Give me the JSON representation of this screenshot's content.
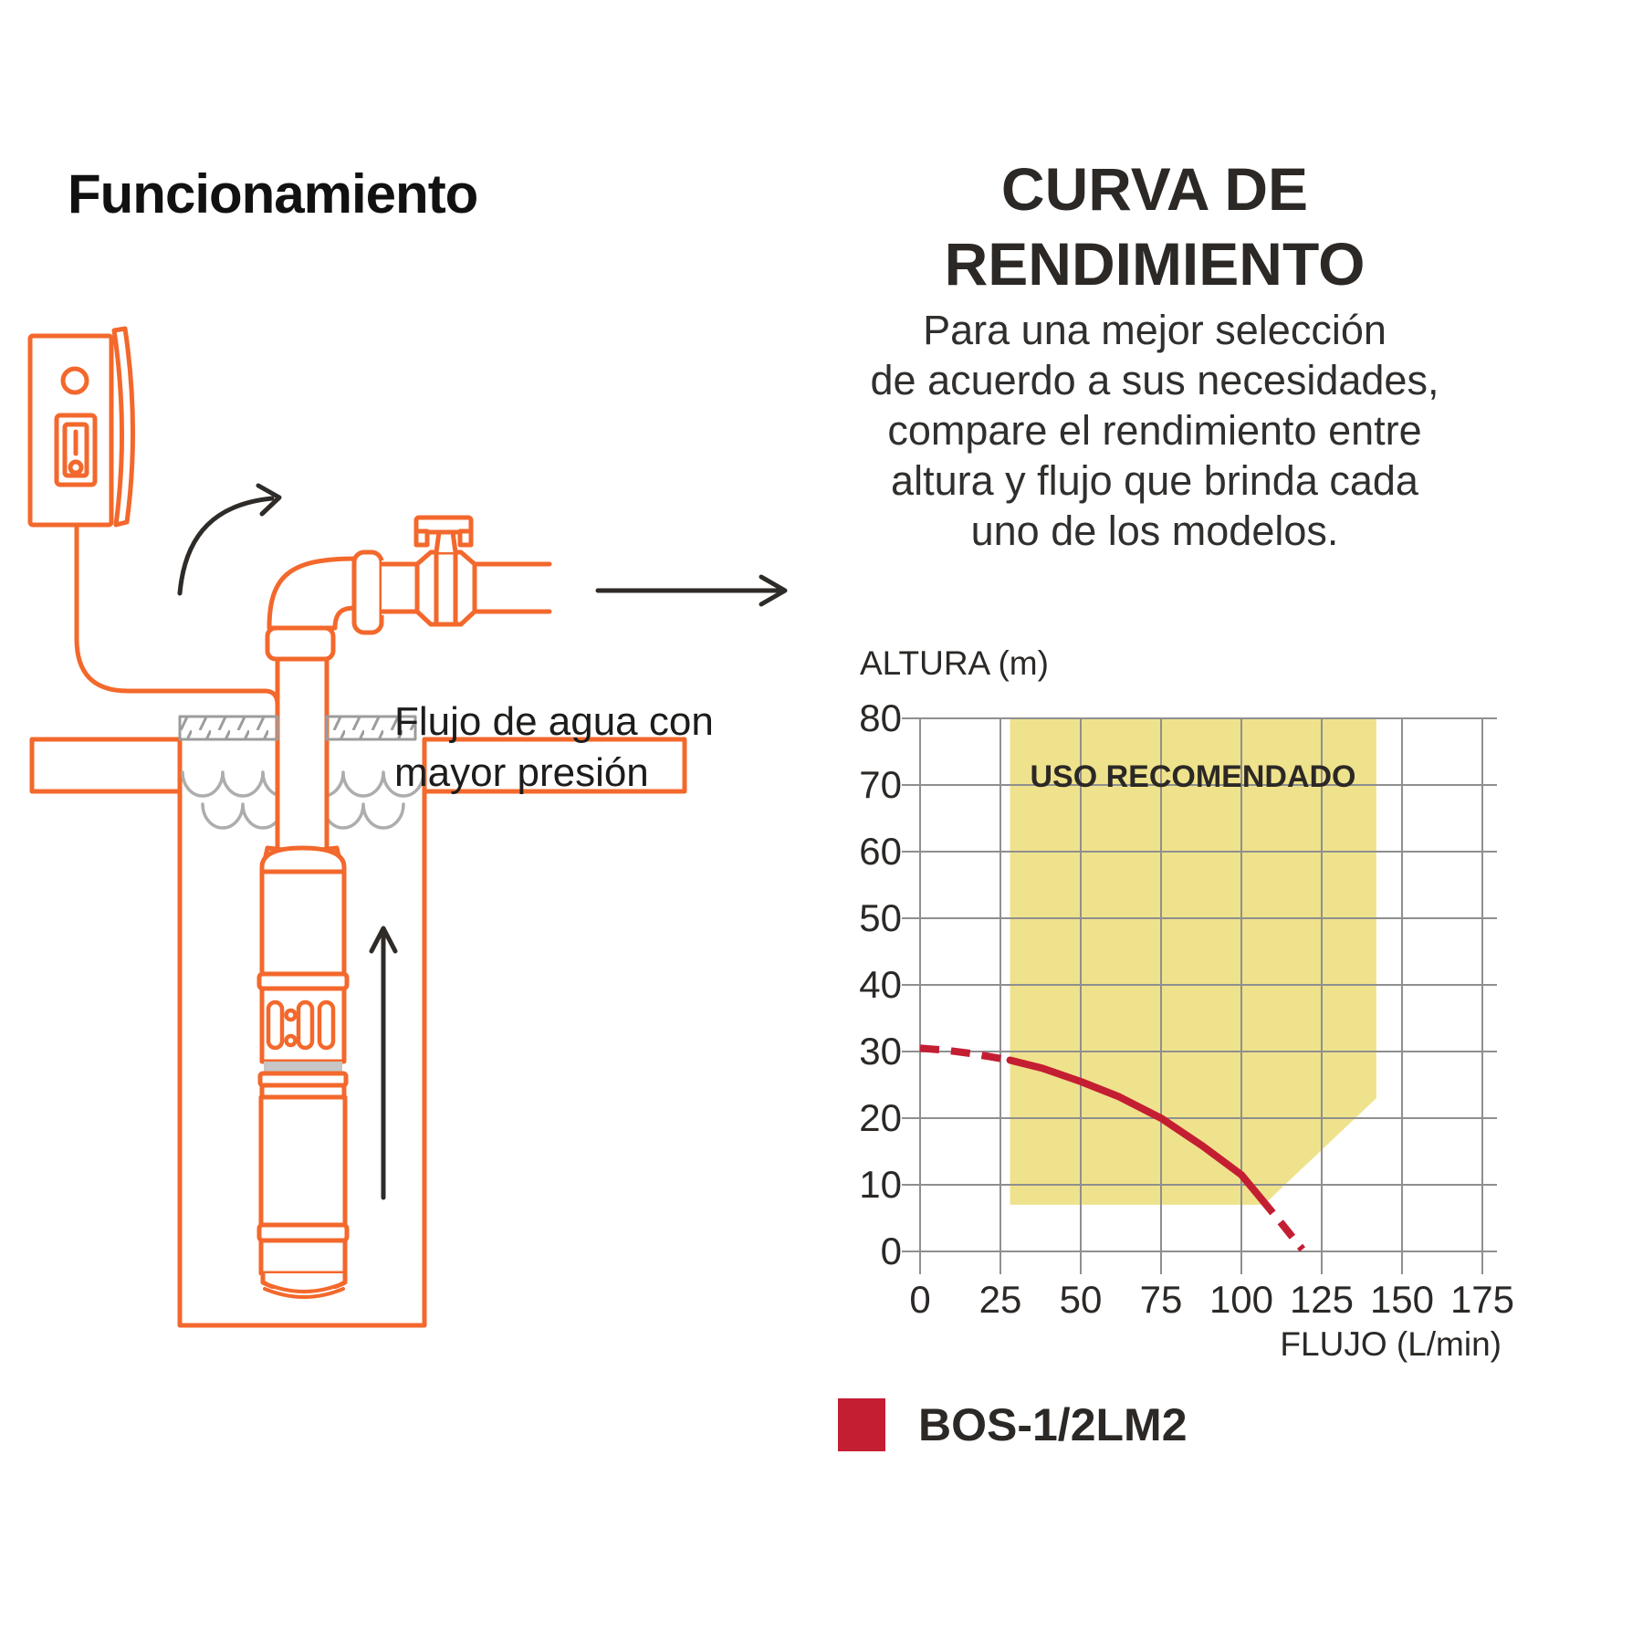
{
  "left_panel": {
    "title": "Funcionamiento",
    "caption_lines": [
      "Flujo de agua con",
      "mayor presión"
    ]
  },
  "right_panel": {
    "heading_lines": [
      "CURVA DE",
      "RENDIMIENTO"
    ],
    "description_lines": [
      "Para una mejor selección",
      "de acuerdo a sus necesidades,",
      "compare el rendimiento entre",
      "altura y flujo que brinda cada",
      "uno de los modelos."
    ],
    "legend": {
      "label": "BOS-1/2LM2",
      "color": "#c41e33"
    }
  },
  "colors": {
    "brand_orange": "#f3682c",
    "curve_red": "#c41e33",
    "recommended_yellow": "#efe28c",
    "grid_gray": "#8f8f8f",
    "text_dark": "#2b2826"
  },
  "chart_data": {
    "type": "line",
    "title": "CURVA DE RENDIMIENTO",
    "xlabel": "FLUJO (L/min)",
    "ylabel": "ALTURA (m)",
    "xlim": [
      0,
      175
    ],
    "ylim": [
      0,
      80
    ],
    "x_ticks": [
      0,
      25,
      50,
      75,
      100,
      125,
      150,
      175
    ],
    "y_ticks": [
      0,
      10,
      20,
      30,
      40,
      50,
      60,
      70,
      80
    ],
    "grid": true,
    "legend_position": "bottom-left",
    "recommended_region": {
      "label": "USO RECOMENDADO",
      "color": "#efe28c",
      "polygon_xy": [
        [
          28,
          80
        ],
        [
          142,
          80
        ],
        [
          142,
          23
        ],
        [
          107,
          7
        ],
        [
          28,
          7
        ]
      ]
    },
    "series": [
      {
        "name": "BOS-1/2LM2",
        "color": "#c41e33",
        "segments": [
          {
            "style": "dashed",
            "points": [
              [
                0,
                30.5
              ],
              [
                8,
                30.2
              ],
              [
                16,
                29.7
              ],
              [
                22,
                29.2
              ],
              [
                28,
                28.7
              ]
            ]
          },
          {
            "style": "solid",
            "points": [
              [
                28,
                28.7
              ],
              [
                38,
                27.5
              ],
              [
                50,
                25.5
              ],
              [
                62,
                23.2
              ],
              [
                75,
                20
              ],
              [
                88,
                15.8
              ],
              [
                100,
                11.5
              ],
              [
                106,
                8
              ]
            ]
          },
          {
            "style": "dashed",
            "points": [
              [
                106,
                8
              ],
              [
                112,
                4.5
              ],
              [
                119,
                0.3
              ]
            ]
          }
        ]
      }
    ]
  }
}
